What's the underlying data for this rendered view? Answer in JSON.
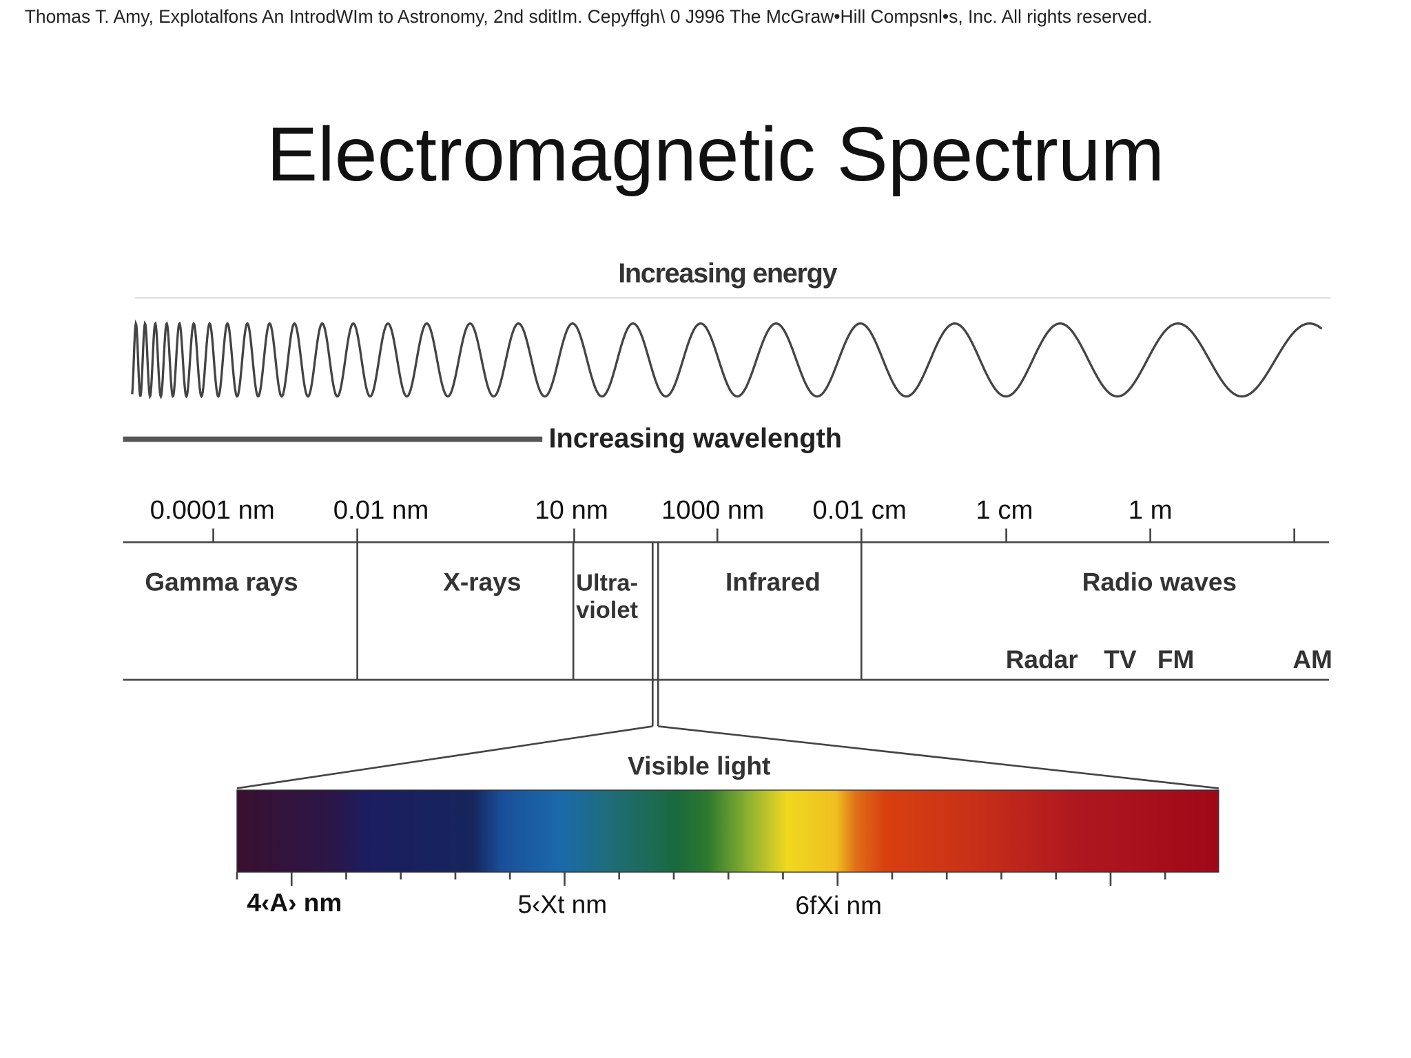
{
  "header": {
    "credit": "Thomas T. Amy, Explotalfons   An IntrodWIm to Astronomy, 2nd sditIm. Cepyffgh\\ 0   J996 The McGraw•Hill Compsnl•s, Inc. All rights reserved."
  },
  "title": "Electromagnetic Spectrum",
  "energy_label": "Increasing energy",
  "wavelength_label": "Increasing wavelength",
  "scale": {
    "ticks": [
      "0.0001 nm",
      "0.01 nm",
      "10 nm",
      "1000 nm",
      "0.01 cm",
      "1 cm",
      "1 m"
    ]
  },
  "regions": [
    "Gamma rays",
    "X-rays",
    "Ultra-",
    "violet",
    "Infrared",
    "Radio waves"
  ],
  "radio_bands": [
    "Radar",
    "TV",
    "FM",
    "AM"
  ],
  "visible": {
    "label": "Visible light",
    "ticks": [
      "4‹A› nm",
      "5‹Xt nm",
      "6fXi nm"
    ]
  }
}
